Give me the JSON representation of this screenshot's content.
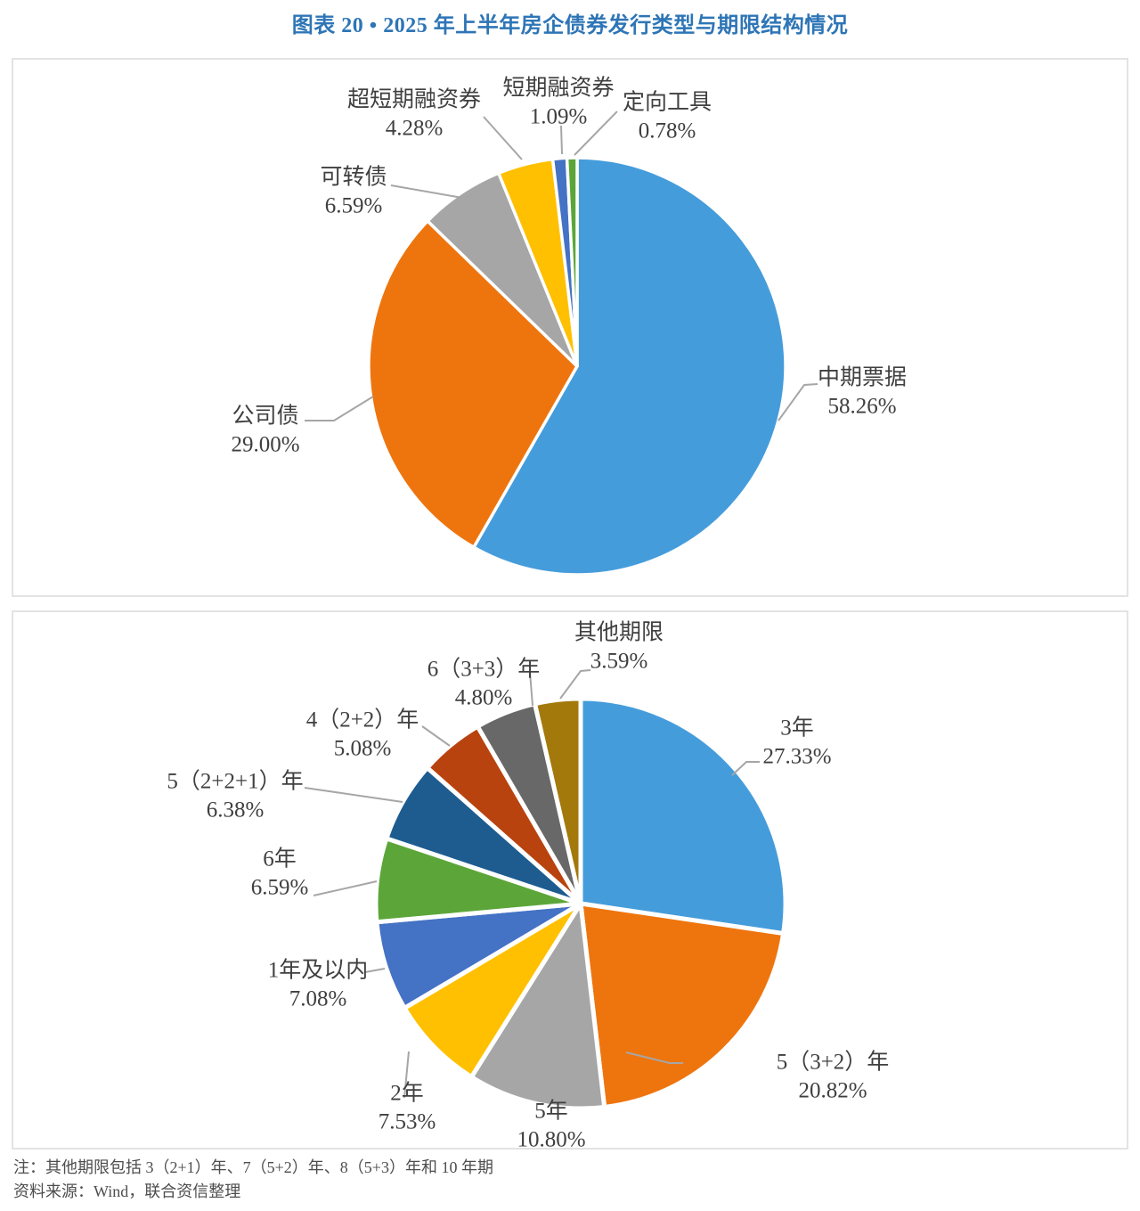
{
  "page": {
    "title": "图表 20 • 2025 年上半年房企债券发行类型与期限结构情况",
    "title_color": "#2E75B6",
    "note_line1": "注：其他期限包括 3（2+1）年、7（5+2）年、8（5+3）年和 10 年期",
    "note_line2": "资料来源：Wind，联合资信整理"
  },
  "chart_data": [
    {
      "type": "pie",
      "name": "bond-issuance-type-structure",
      "categories": [
        "中期票据",
        "公司债",
        "可转债",
        "超短期融资券",
        "短期融资券",
        "定向工具"
      ],
      "values": [
        58.26,
        29.0,
        6.59,
        4.28,
        1.09,
        0.78
      ],
      "labels": [
        "58.26%",
        "29.00%",
        "6.59%",
        "4.28%",
        "1.09%",
        "0.78%"
      ],
      "colors": [
        "#459CDB",
        "#EE750E",
        "#A6A6A6",
        "#FFC001",
        "#4472C4",
        "#5CA639"
      ],
      "start_angle_deg": 0,
      "direction": "clockwise",
      "legend": "none",
      "data_labels": "category and percent outside slices with gray leader lines"
    },
    {
      "type": "pie",
      "name": "bond-maturity-structure",
      "categories": [
        "3年",
        "5（3+2）年",
        "5年",
        "2年",
        "1年及以内",
        "6年",
        "5（2+2+1）年",
        "4（2+2）年",
        "6（3+3）年",
        "其他期限"
      ],
      "values": [
        27.33,
        20.82,
        10.8,
        7.53,
        7.08,
        6.59,
        6.38,
        5.08,
        4.8,
        3.59
      ],
      "labels": [
        "27.33%",
        "20.82%",
        "10.80%",
        "7.53%",
        "7.08%",
        "6.59%",
        "6.38%",
        "5.08%",
        "4.80%",
        "3.59%"
      ],
      "colors": [
        "#459CDB",
        "#EE750E",
        "#A6A6A6",
        "#FFC001",
        "#4472C4",
        "#5CA639",
        "#1E5C90",
        "#B8430F",
        "#686868",
        "#A3790C"
      ],
      "start_angle_deg": 0,
      "direction": "clockwise",
      "legend": "none",
      "data_labels": "category and percent outside slices with gray leader lines"
    }
  ]
}
